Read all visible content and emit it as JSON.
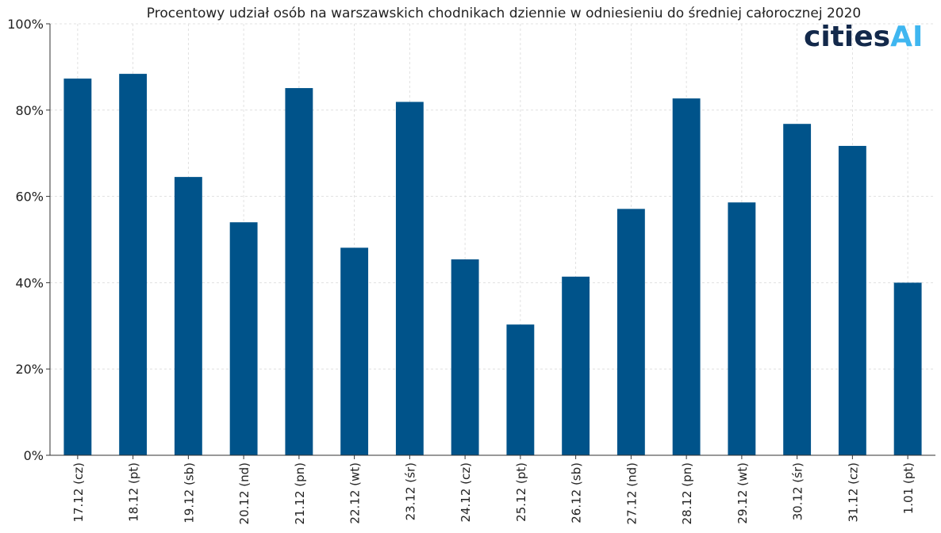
{
  "logo": {
    "main": "cities",
    "accent": "AI"
  },
  "colors": {
    "bar": "#00538a",
    "logo_main": "#13294b",
    "logo_accent": "#3fb6f0"
  },
  "chart_data": {
    "type": "bar",
    "title": "Procentowy udział osób na warszawskich chodnikach dziennie w odniesieniu do średniej całorocznej 2020",
    "xlabel": "",
    "ylabel": "",
    "ylim": [
      0,
      100
    ],
    "yticks": [
      0,
      20,
      40,
      60,
      80,
      100
    ],
    "ytick_suffix": "%",
    "grid": true,
    "categories": [
      "17.12 (cz)",
      "18.12 (pt)",
      "19.12 (sb)",
      "20.12 (nd)",
      "21.12 (pn)",
      "22.12 (wt)",
      "23.12 (śr)",
      "24.12 (cz)",
      "25.12 (pt)",
      "26.12 (sb)",
      "27.12 (nd)",
      "28.12 (pn)",
      "29.12 (wt)",
      "30.12 (śr)",
      "31.12 (cz)",
      "1.01 (pt)"
    ],
    "values": [
      87.3,
      88.4,
      64.5,
      54.0,
      85.1,
      48.1,
      81.9,
      45.4,
      30.3,
      41.4,
      57.1,
      82.7,
      58.6,
      76.8,
      71.7,
      40.0
    ]
  }
}
